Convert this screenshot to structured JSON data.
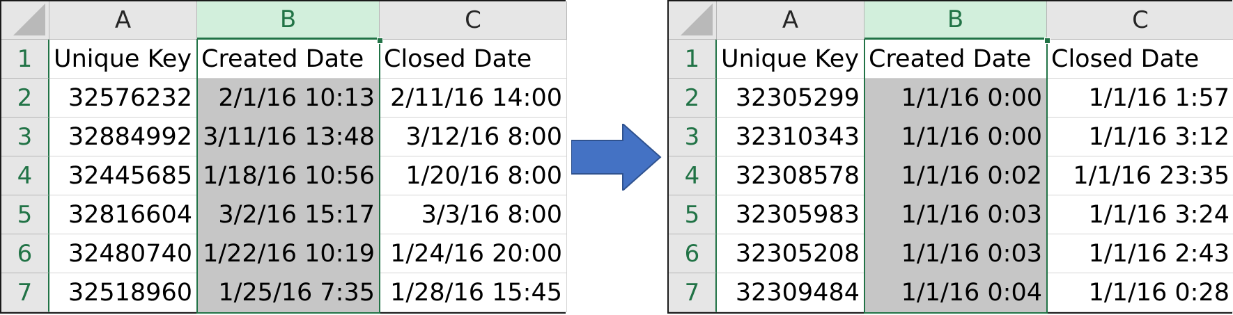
{
  "left_sheet": {
    "corner": "",
    "columns": [
      "A",
      "B",
      "C"
    ],
    "rows": [
      {
        "num": "1",
        "a": "Unique Key",
        "b": "Created Date",
        "c": "Closed Date"
      },
      {
        "num": "2",
        "a": "32576232",
        "b": "2/1/16 10:13",
        "c": "2/11/16 14:00"
      },
      {
        "num": "3",
        "a": "32884992",
        "b": "3/11/16 13:48",
        "c": "3/12/16 8:00"
      },
      {
        "num": "4",
        "a": "32445685",
        "b": "1/18/16 10:56",
        "c": "1/20/16 8:00"
      },
      {
        "num": "5",
        "a": "32816604",
        "b": "3/2/16 15:17",
        "c": "3/3/16 8:00"
      },
      {
        "num": "6",
        "a": "32480740",
        "b": "1/22/16 10:19",
        "c": "1/24/16 20:00"
      },
      {
        "num": "7",
        "a": "32518960",
        "b": "1/25/16 7:35",
        "c": "1/28/16 15:45"
      }
    ]
  },
  "right_sheet": {
    "corner": "",
    "columns": [
      "A",
      "B",
      "C"
    ],
    "rows": [
      {
        "num": "1",
        "a": "Unique Key",
        "b": "Created Date",
        "c": "Closed Date"
      },
      {
        "num": "2",
        "a": "32305299",
        "b": "1/1/16 0:00",
        "c": "1/1/16 1:57"
      },
      {
        "num": "3",
        "a": "32310343",
        "b": "1/1/16 0:00",
        "c": "1/1/16 3:12"
      },
      {
        "num": "4",
        "a": "32308578",
        "b": "1/1/16 0:02",
        "c": "1/1/16 23:35"
      },
      {
        "num": "5",
        "a": "32305983",
        "b": "1/1/16 0:03",
        "c": "1/1/16 3:24"
      },
      {
        "num": "6",
        "a": "32305208",
        "b": "1/1/16 0:03",
        "c": "1/1/16 2:43"
      },
      {
        "num": "7",
        "a": "32309484",
        "b": "1/1/16 0:04",
        "c": "1/1/16 0:28"
      }
    ]
  },
  "arrow": {
    "icon": "right-arrow-icon",
    "color": "#4472c4"
  },
  "colors": {
    "header_bg": "#e6e6e6",
    "active_header_bg": "#d2efdc",
    "accent": "#217346",
    "selection_fill": "#c6c6c6"
  }
}
